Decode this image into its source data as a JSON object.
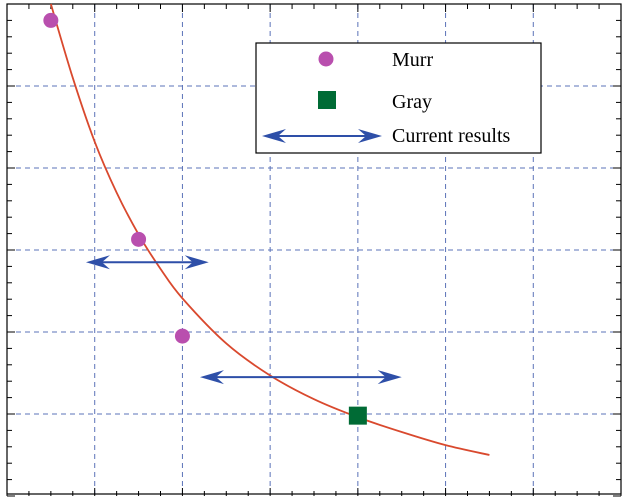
{
  "chart_data": {
    "type": "scatter",
    "title": "",
    "xlabel": "",
    "ylabel": "",
    "xlim": [
      0,
      7
    ],
    "ylim": [
      0,
      6
    ],
    "grid": true,
    "legend_placement": "top-right",
    "series": [
      {
        "name": "Murr",
        "marker": "circle",
        "color": "#b94fae",
        "points": [
          {
            "x": 0.5,
            "y": 5.8
          },
          {
            "x": 1.5,
            "y": 3.13
          },
          {
            "x": 2.0,
            "y": 1.95
          }
        ]
      },
      {
        "name": "Gray",
        "marker": "square",
        "color": "#006b35",
        "points": [
          {
            "x": 4.0,
            "y": 0.98
          }
        ]
      },
      {
        "name": "Current results",
        "marker": "double-arrow",
        "color": "#2e4fa8",
        "ranges": [
          {
            "x_from": 0.9,
            "x_to": 2.3,
            "y": 2.85
          },
          {
            "x_from": 2.2,
            "y": 1.45,
            "x_to": 4.5
          }
        ]
      }
    ],
    "fit_curve": {
      "color": "#d9492e",
      "points": [
        {
          "x": 0.5,
          "y": 6.0
        },
        {
          "x": 0.75,
          "y": 5.1
        },
        {
          "x": 1.0,
          "y": 4.32
        },
        {
          "x": 1.25,
          "y": 3.7
        },
        {
          "x": 1.5,
          "y": 3.19
        },
        {
          "x": 1.75,
          "y": 2.77
        },
        {
          "x": 2.0,
          "y": 2.41
        },
        {
          "x": 2.5,
          "y": 1.86
        },
        {
          "x": 3.0,
          "y": 1.47
        },
        {
          "x": 3.5,
          "y": 1.18
        },
        {
          "x": 4.0,
          "y": 0.96
        },
        {
          "x": 4.5,
          "y": 0.78
        },
        {
          "x": 5.0,
          "y": 0.62
        },
        {
          "x": 5.5,
          "y": 0.5
        }
      ]
    },
    "legend": [
      {
        "label": "Murr"
      },
      {
        "label": "Gray"
      },
      {
        "label": "Current results"
      }
    ]
  }
}
